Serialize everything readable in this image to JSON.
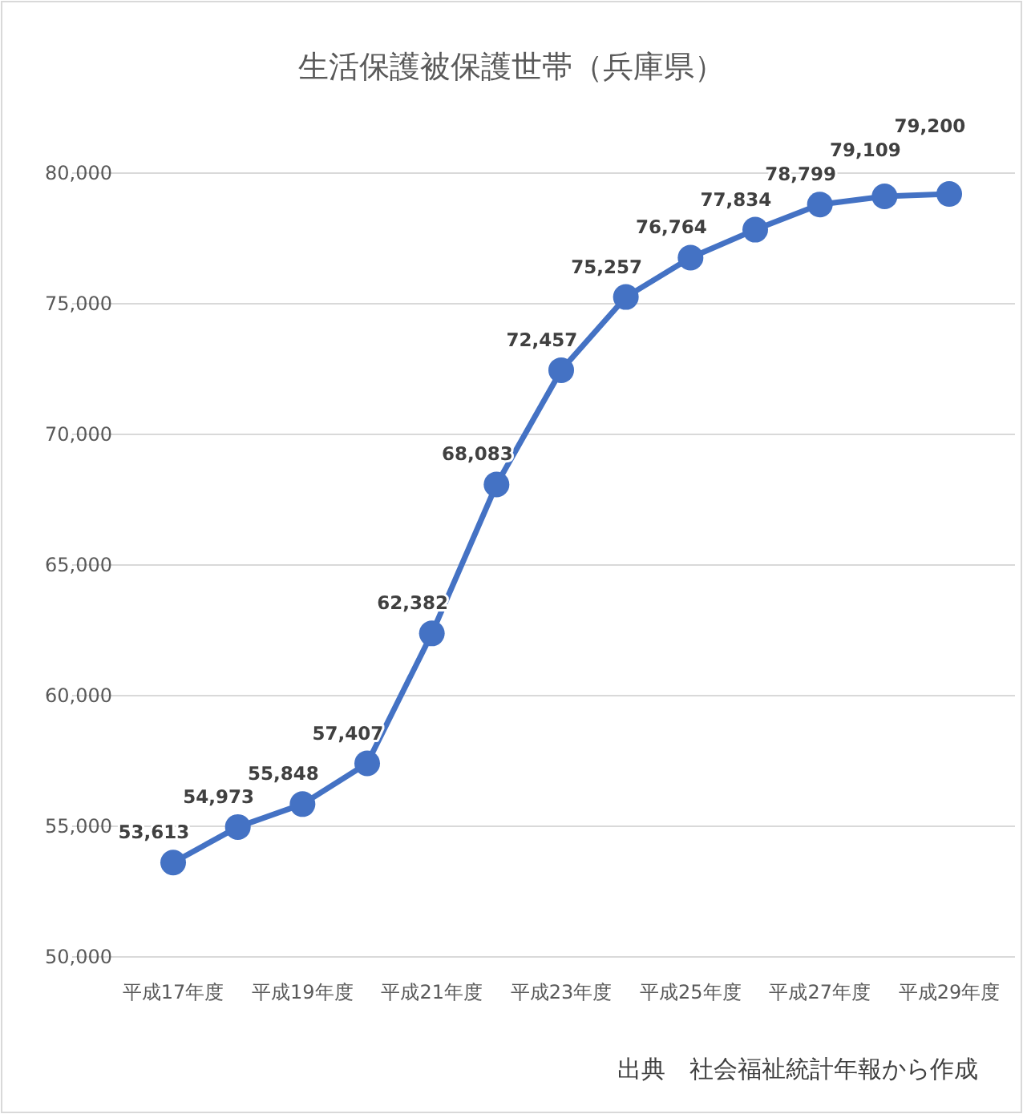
{
  "chart_data": {
    "type": "line",
    "title": "生活保護被保護世帯（兵庫県）",
    "categories": [
      "平成17年度",
      null,
      "平成19年度",
      null,
      "平成21年度",
      null,
      "平成23年度",
      null,
      "平成25年度",
      null,
      "平成27年度",
      null,
      "平成29年度"
    ],
    "values": [
      53613,
      54973,
      55848,
      57407,
      62382,
      68083,
      72457,
      75257,
      76764,
      77834,
      78799,
      79109,
      79200
    ],
    "value_labels": [
      "53,613",
      "54,973",
      "55,848",
      "57,407",
      "62,382",
      "68,083",
      "72,457",
      "75,257",
      "76,764",
      "77,834",
      "78,799",
      "79,109",
      "79,200"
    ],
    "color": "#4472c4",
    "ylim": [
      50000,
      80000
    ],
    "yticks": [
      {
        "value": 50000,
        "label": "50,000"
      },
      {
        "value": 55000,
        "label": "55,000"
      },
      {
        "value": 60000,
        "label": "60,000"
      },
      {
        "value": 65000,
        "label": "65,000"
      },
      {
        "value": 70000,
        "label": "70,000"
      },
      {
        "value": 75000,
        "label": "75,000"
      },
      {
        "value": 80000,
        "label": "80,000"
      }
    ],
    "grid": "y",
    "marker": "circle",
    "line_style": "solid",
    "annotations": [
      "出典　社会福祉統計年報から作成"
    ]
  }
}
